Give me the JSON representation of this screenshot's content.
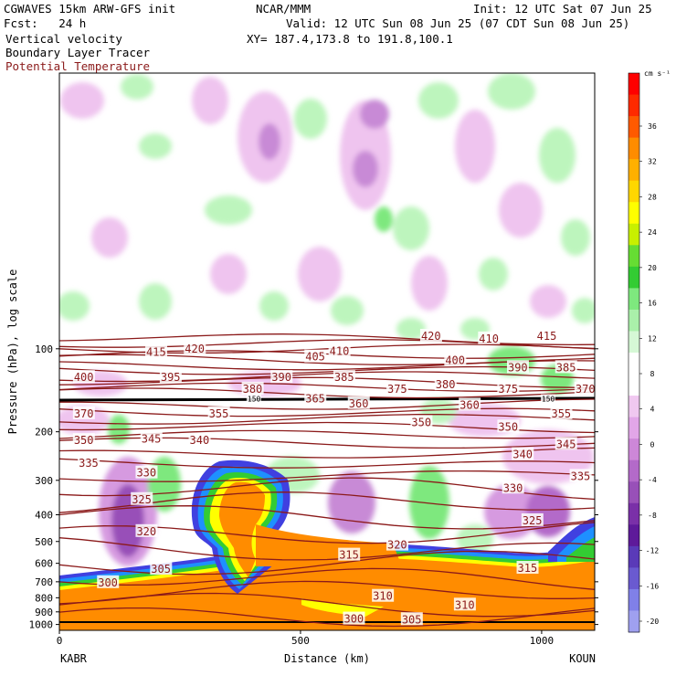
{
  "header": {
    "model": "CGWAVES 15km ARW-GFS init",
    "center": "NCAR/MMM",
    "init": "Init: 12 UTC Sat 07 Jun 25",
    "fcst": "Fcst:   24 h",
    "valid": "Valid: 12 UTC Sun 08 Jun 25 (07 CDT Sun 08 Jun 25)",
    "field1": "Vertical velocity",
    "field2": "Boundary Layer Tracer",
    "field3": "Potential Temperature",
    "xy": "XY= 187.4,173.8 to 191.8,100.1"
  },
  "colors": {
    "theta_contour": "#8b1a1a",
    "tracer_orange": "#ff8c00",
    "updraft_green": "#66dd66",
    "downdraft_purple": "#b36ac9"
  },
  "chart_data": {
    "type": "heatmap",
    "ylabel": "Pressure (hPa), log scale",
    "xlabel": "Distance (km)",
    "x_ticks": [
      0,
      500,
      1000
    ],
    "xlim": [
      0,
      1110
    ],
    "y_ticks": [
      100,
      200,
      300,
      400,
      500,
      600,
      700,
      800,
      900,
      1000
    ],
    "ylim": [
      1050,
      10
    ],
    "y_scale": "log",
    "left_station": "KABR",
    "right_station": "KOUN",
    "colorbar": {
      "unit": "cm s⁻¹",
      "labels": [
        36,
        32,
        28,
        24,
        20,
        16,
        12,
        8,
        4,
        0,
        -4,
        -8,
        -12,
        -16,
        -20
      ],
      "colors": [
        "#ff0000",
        "#ff2a00",
        "#ff5a00",
        "#ff8c00",
        "#ffb000",
        "#ffd700",
        "#ffff00",
        "#c8f000",
        "#66dd33",
        "#33cc33",
        "#7ee87e",
        "#aaf0aa",
        "#d6f8d6",
        "#ffffff",
        "#ffffff",
        "#f0c8f0",
        "#e2a6e8",
        "#cd87d8",
        "#b36ac9",
        "#9850b8",
        "#7a30a8",
        "#5e1a9a",
        "#5a3ab8",
        "#6a5ad0",
        "#8080e8",
        "#9fa0f0"
      ]
    },
    "theta_labels": [
      {
        "v": "415",
        "x": 180,
        "p": 103
      },
      {
        "v": "420",
        "x": 260,
        "p": 100
      },
      {
        "v": "405",
        "x": 510,
        "p": 107
      },
      {
        "v": "410",
        "x": 560,
        "p": 102
      },
      {
        "v": "420",
        "x": 750,
        "p": 90
      },
      {
        "v": "410",
        "x": 870,
        "p": 92
      },
      {
        "v": "415",
        "x": 990,
        "p": 90
      },
      {
        "v": "400",
        "x": 30,
        "p": 127
      },
      {
        "v": "395",
        "x": 210,
        "p": 127
      },
      {
        "v": "390",
        "x": 440,
        "p": 127
      },
      {
        "v": "385",
        "x": 570,
        "p": 127
      },
      {
        "v": "400",
        "x": 800,
        "p": 110
      },
      {
        "v": "390",
        "x": 930,
        "p": 117
      },
      {
        "v": "385",
        "x": 1030,
        "p": 117
      },
      {
        "v": "380",
        "x": 380,
        "p": 140
      },
      {
        "v": "375",
        "x": 680,
        "p": 140
      },
      {
        "v": "380",
        "x": 780,
        "p": 135
      },
      {
        "v": "375",
        "x": 910,
        "p": 140
      },
      {
        "v": "370",
        "x": 1070,
        "p": 140
      },
      {
        "v": "365",
        "x": 510,
        "p": 152
      },
      {
        "v": "360",
        "x": 600,
        "p": 158
      },
      {
        "v": "370",
        "x": 30,
        "p": 172
      },
      {
        "v": "355",
        "x": 310,
        "p": 172
      },
      {
        "v": "360",
        "x": 830,
        "p": 160
      },
      {
        "v": "355",
        "x": 1020,
        "p": 172
      },
      {
        "v": "350",
        "x": 730,
        "p": 185
      },
      {
        "v": "350",
        "x": 910,
        "p": 192
      },
      {
        "v": "350",
        "x": 30,
        "p": 215
      },
      {
        "v": "345",
        "x": 170,
        "p": 212
      },
      {
        "v": "340",
        "x": 270,
        "p": 215
      },
      {
        "v": "345",
        "x": 1030,
        "p": 222
      },
      {
        "v": "340",
        "x": 940,
        "p": 242
      },
      {
        "v": "335",
        "x": 40,
        "p": 260
      },
      {
        "v": "330",
        "x": 160,
        "p": 282
      },
      {
        "v": "335",
        "x": 1060,
        "p": 290
      },
      {
        "v": "330",
        "x": 920,
        "p": 320
      },
      {
        "v": "325",
        "x": 150,
        "p": 352
      },
      {
        "v": "325",
        "x": 960,
        "p": 420
      },
      {
        "v": "320",
        "x": 160,
        "p": 460
      },
      {
        "v": "320",
        "x": 680,
        "p": 515
      },
      {
        "v": "315",
        "x": 580,
        "p": 560
      },
      {
        "v": "315",
        "x": 950,
        "p": 625
      },
      {
        "v": "305",
        "x": 190,
        "p": 630
      },
      {
        "v": "300",
        "x": 80,
        "p": 705
      },
      {
        "v": "310",
        "x": 650,
        "p": 790
      },
      {
        "v": "310",
        "x": 820,
        "p": 850
      },
      {
        "v": "300",
        "x": 590,
        "p": 955
      },
      {
        "v": "305",
        "x": 710,
        "p": 960
      }
    ],
    "tropopause_label": {
      "v": "150",
      "x": 390,
      "p": 153
    },
    "tropopause_label2": {
      "v": "150",
      "x": 1000,
      "p": 153
    }
  }
}
